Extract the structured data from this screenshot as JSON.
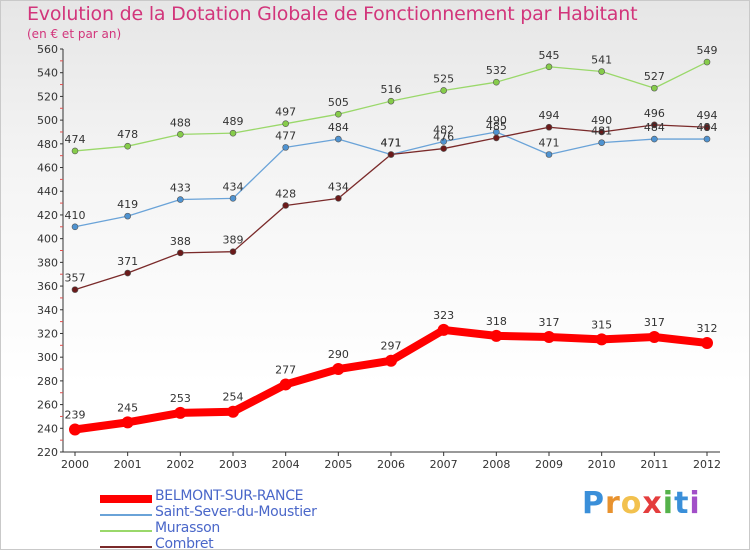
{
  "title": "Evolution de la Dotation Globale de Fonctionnement par Habitant",
  "subtitle": "(en € et par an)",
  "logo": "Proxiti",
  "chart_data": {
    "type": "line",
    "title": "Evolution de la Dotation Globale de Fonctionnement par Habitant",
    "subtitle": "(en € et par an)",
    "xlabel": "",
    "ylabel": "",
    "x": [
      "2000",
      "2001",
      "2002",
      "2003",
      "2004",
      "2005",
      "2006",
      "2007",
      "2008",
      "2009",
      "2010",
      "2011",
      "2012"
    ],
    "ylim": [
      220,
      560
    ],
    "yticks": [
      220,
      240,
      260,
      280,
      300,
      320,
      340,
      360,
      380,
      400,
      420,
      440,
      460,
      480,
      500,
      520,
      540,
      560
    ],
    "grid": false,
    "series": [
      {
        "name": "BELMONT-SUR-RANCE",
        "color": "#ff0000",
        "marker": "#ff0000",
        "values": [
          239,
          245,
          253,
          254,
          277,
          290,
          297,
          323,
          318,
          317,
          315,
          317,
          312
        ]
      },
      {
        "name": "Saint-Sever-du-Moustier",
        "color": "#6aa3d8",
        "marker": "#4f93d1",
        "values": [
          410,
          419,
          433,
          434,
          477,
          484,
          471,
          482,
          490,
          471,
          481,
          484,
          484
        ]
      },
      {
        "name": "Murasson",
        "color": "#9ad86a",
        "marker": "#86cc4a",
        "values": [
          474,
          478,
          488,
          489,
          497,
          505,
          516,
          525,
          532,
          545,
          541,
          527,
          549
        ]
      },
      {
        "name": "Combret",
        "color": "#7a2a2a",
        "marker": "#6b1a1a",
        "values": [
          357,
          371,
          388,
          389,
          428,
          434,
          471,
          476,
          485,
          494,
          490,
          496,
          494
        ]
      }
    ],
    "legend": {
      "placement": "bottom-left"
    }
  }
}
